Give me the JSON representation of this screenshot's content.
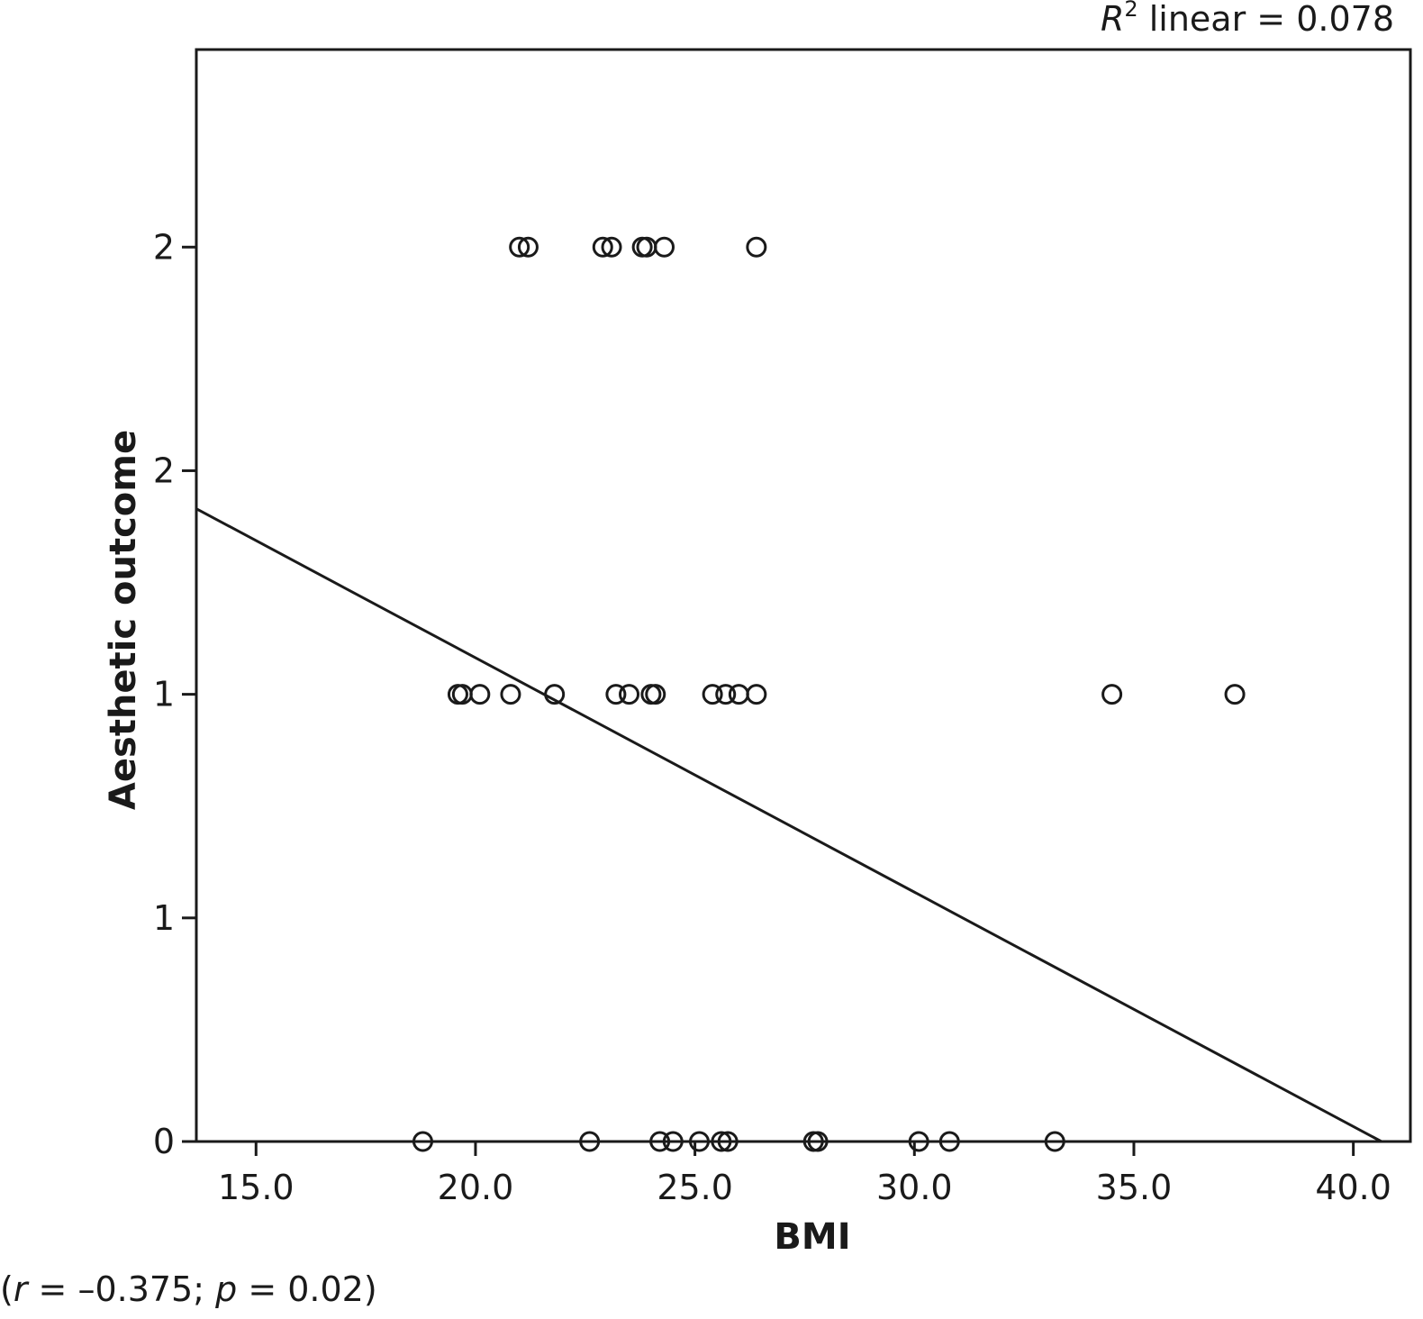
{
  "chart_data": {
    "type": "scatter",
    "xlabel": "BMI",
    "ylabel": "Aesthetic outcome",
    "xlim": [
      13.64,
      41.3
    ],
    "ylim": [
      0,
      2.5
    ],
    "x_ticks": [
      {
        "value": 15.0,
        "label": "15.0"
      },
      {
        "value": 20.0,
        "label": "20.0"
      },
      {
        "value": 25.0,
        "label": "25.0"
      },
      {
        "value": 30.0,
        "label": "30.0"
      },
      {
        "value": 35.0,
        "label": "35.0"
      },
      {
        "value": 40.0,
        "label": "40.0"
      }
    ],
    "y_ticks": [
      {
        "value": 0,
        "label": "0"
      },
      {
        "value": 0.5,
        "label": "1"
      },
      {
        "value": 1.0,
        "label": "1"
      },
      {
        "value": 1.5,
        "label": "2"
      },
      {
        "value": 2.0,
        "label": "2"
      }
    ],
    "points": [
      {
        "x": 21.0,
        "y": 2
      },
      {
        "x": 21.2,
        "y": 2
      },
      {
        "x": 22.9,
        "y": 2
      },
      {
        "x": 23.1,
        "y": 2
      },
      {
        "x": 23.8,
        "y": 2
      },
      {
        "x": 23.9,
        "y": 2
      },
      {
        "x": 24.3,
        "y": 2
      },
      {
        "x": 26.4,
        "y": 2
      },
      {
        "x": 19.6,
        "y": 1
      },
      {
        "x": 19.7,
        "y": 1
      },
      {
        "x": 20.1,
        "y": 1
      },
      {
        "x": 20.8,
        "y": 1
      },
      {
        "x": 21.8,
        "y": 1
      },
      {
        "x": 23.2,
        "y": 1
      },
      {
        "x": 23.5,
        "y": 1
      },
      {
        "x": 24.0,
        "y": 1
      },
      {
        "x": 24.1,
        "y": 1
      },
      {
        "x": 25.4,
        "y": 1
      },
      {
        "x": 25.7,
        "y": 1
      },
      {
        "x": 26.0,
        "y": 1
      },
      {
        "x": 26.4,
        "y": 1
      },
      {
        "x": 34.5,
        "y": 1
      },
      {
        "x": 37.3,
        "y": 1
      },
      {
        "x": 18.8,
        "y": 0
      },
      {
        "x": 22.6,
        "y": 0
      },
      {
        "x": 24.2,
        "y": 0
      },
      {
        "x": 24.5,
        "y": 0
      },
      {
        "x": 25.1,
        "y": 0
      },
      {
        "x": 25.6,
        "y": 0
      },
      {
        "x": 25.75,
        "y": 0
      },
      {
        "x": 27.7,
        "y": 0
      },
      {
        "x": 27.8,
        "y": 0
      },
      {
        "x": 30.1,
        "y": 0
      },
      {
        "x": 30.8,
        "y": 0
      },
      {
        "x": 33.2,
        "y": 0
      }
    ],
    "fit_line": {
      "x": [
        13.64,
        40.64
      ],
      "y": [
        1.415,
        0.0
      ]
    },
    "r2_label": {
      "var": "R",
      "sup": "2",
      "text": " linear = 0.078"
    },
    "annotation": {
      "open": "(",
      "r_var": "r",
      "r_text": " = –0.375; ",
      "p_var": "p",
      "p_text": " = 0.02)"
    },
    "grid": false,
    "legend": "none"
  }
}
